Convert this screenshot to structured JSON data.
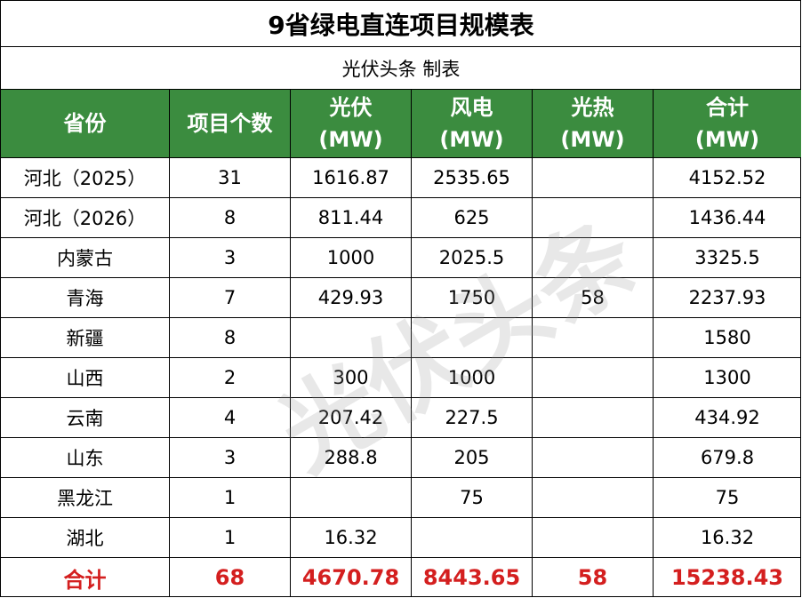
{
  "title": "9省绿电直连项目规模表",
  "subtitle": "光伏头条 制表",
  "watermark": "光伏头条",
  "table": {
    "header": {
      "names": [
        "省份",
        "项目个数",
        "光伏",
        "风电",
        "光热",
        "合计"
      ],
      "units": [
        null,
        null,
        "(MW)",
        "(MW)",
        "(MW)",
        "(MW)"
      ]
    },
    "rows": [
      [
        "河北（2025）",
        "31",
        "1616.87",
        "2535.65",
        null,
        "4152.52"
      ],
      [
        "河北（2026）",
        "8",
        "811.44",
        "625",
        null,
        "1436.44"
      ],
      [
        "内蒙古",
        "3",
        "1000",
        "2025.5",
        null,
        "3325.5"
      ],
      [
        "青海",
        "7",
        "429.93",
        "1750",
        "58",
        "2237.93"
      ],
      [
        "新疆",
        "8",
        null,
        null,
        null,
        "1580"
      ],
      [
        "山西",
        "2",
        "300",
        "1000",
        null,
        "1300"
      ],
      [
        "云南",
        "4",
        "207.42",
        "227.5",
        null,
        "434.92"
      ],
      [
        "山东",
        "3",
        "288.8",
        "205",
        null,
        "679.8"
      ],
      [
        "黑龙江",
        "1",
        null,
        "75",
        null,
        "75"
      ],
      [
        "湖北",
        "1",
        "16.32",
        null,
        null,
        "16.32"
      ]
    ],
    "total": [
      "合计",
      "68",
      "4670.78",
      "8443.65",
      "58",
      "15238.43"
    ]
  }
}
